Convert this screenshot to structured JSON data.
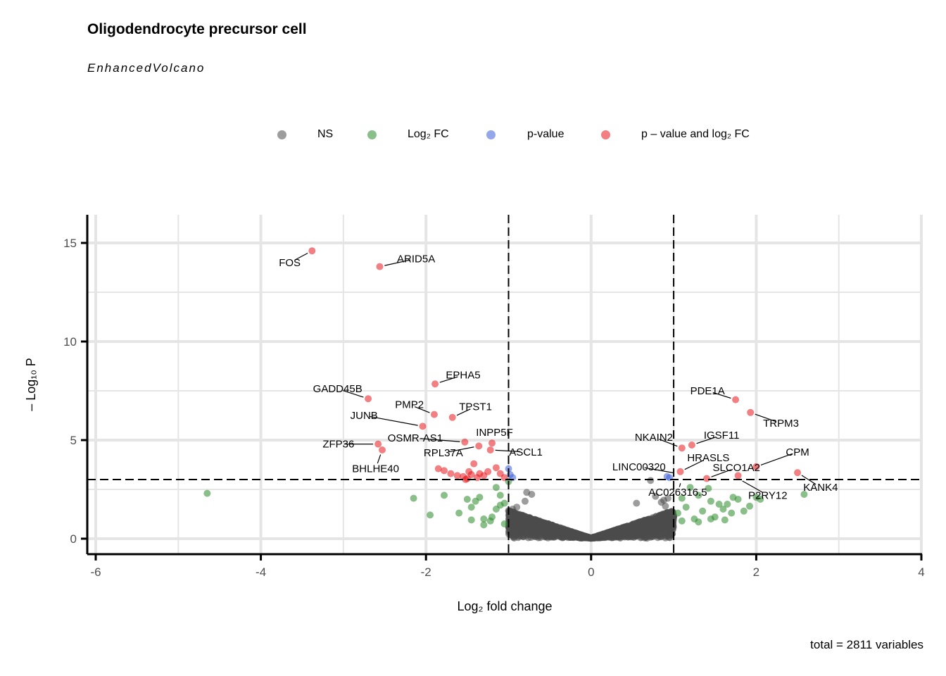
{
  "title": "Oligodendrocyte precursor cell",
  "subtitle": "EnhancedVolcano",
  "caption": "total = 2811 variables",
  "legend": [
    {
      "key": "ns",
      "label": "NS",
      "color": "#4d4d4d"
    },
    {
      "key": "log2fc",
      "label": "Log₂ FC",
      "color": "#2a8a2a"
    },
    {
      "key": "pvalue",
      "label": "p-value",
      "color": "#3b5ed9"
    },
    {
      "key": "both",
      "label": "p – value and log₂ FC",
      "color": "#e8151b"
    }
  ],
  "chart_data": {
    "type": "scatter",
    "title": "Oligodendrocyte precursor cell",
    "subtitle": "EnhancedVolcano",
    "xlabel": "Log₂ fold change",
    "ylabel": "– Log₁₀ P",
    "xlim": [
      -6,
      4
    ],
    "ylim": [
      -0.8,
      16.3
    ],
    "x_ticks": [
      -6,
      -4,
      -2,
      0,
      2,
      4
    ],
    "y_ticks": [
      0,
      5,
      10,
      15
    ],
    "x_tick_labels": [
      "-6",
      "-4",
      "-2",
      "0",
      "2",
      "4"
    ],
    "y_tick_labels": [
      "0",
      "5",
      "10",
      "15"
    ],
    "grid": true,
    "legend_position": "top",
    "cutoffs": {
      "log2fc": [
        -1,
        1
      ],
      "neg_log10_p": 3
    },
    "caption": "total = 2811 variables",
    "total_variables": 2811,
    "labeled_genes": [
      {
        "name": "FOS",
        "x": -3.38,
        "y": 14.6,
        "label_x": -3.65,
        "label_y": 14.0
      },
      {
        "name": "ARID5A",
        "x": -2.56,
        "y": 13.8,
        "label_x": -2.12,
        "label_y": 14.2
      },
      {
        "name": "EPHA5",
        "x": -1.89,
        "y": 7.85,
        "label_x": -1.55,
        "label_y": 8.3
      },
      {
        "name": "GADD45B",
        "x": -2.7,
        "y": 7.1,
        "label_x": -3.07,
        "label_y": 7.6
      },
      {
        "name": "PMP2",
        "x": -1.9,
        "y": 6.3,
        "label_x": -2.2,
        "label_y": 6.8
      },
      {
        "name": "TPST1",
        "x": -1.68,
        "y": 6.15,
        "label_x": -1.4,
        "label_y": 6.7
      },
      {
        "name": "JUNB",
        "x": -2.04,
        "y": 5.7,
        "label_x": -2.75,
        "label_y": 6.25
      },
      {
        "name": "INPP5F",
        "x": -1.2,
        "y": 4.85,
        "label_x": -1.17,
        "label_y": 5.4
      },
      {
        "name": "OSMR-AS1",
        "x": -1.53,
        "y": 4.9,
        "label_x": -2.13,
        "label_y": 5.1
      },
      {
        "name": "ZFP36",
        "x": -2.58,
        "y": 4.8,
        "label_x": -3.06,
        "label_y": 4.8
      },
      {
        "name": "RPL37A",
        "x": -1.36,
        "y": 4.7,
        "label_x": -1.79,
        "label_y": 4.35
      },
      {
        "name": "ASCL1",
        "x": -1.22,
        "y": 4.5,
        "label_x": -0.79,
        "label_y": 4.4
      },
      {
        "name": "BHLHE40",
        "x": -2.53,
        "y": 4.5,
        "label_x": -2.61,
        "label_y": 3.55
      },
      {
        "name": "PDE1A",
        "x": 1.75,
        "y": 7.05,
        "label_x": 1.41,
        "label_y": 7.5
      },
      {
        "name": "TRPM3",
        "x": 1.93,
        "y": 6.4,
        "label_x": 2.3,
        "label_y": 5.85
      },
      {
        "name": "NKAIN2",
        "x": 1.1,
        "y": 4.6,
        "label_x": 0.76,
        "label_y": 5.15
      },
      {
        "name": "IGSF11",
        "x": 1.22,
        "y": 4.75,
        "label_x": 1.58,
        "label_y": 5.25
      },
      {
        "name": "CPM",
        "x": 2.0,
        "y": 3.65,
        "label_x": 2.5,
        "label_y": 4.4
      },
      {
        "name": "HRASLS",
        "x": 1.08,
        "y": 3.4,
        "label_x": 1.42,
        "label_y": 4.1
      },
      {
        "name": "LINC00320",
        "x": 1.05,
        "y": 3.3,
        "label_x": 0.58,
        "label_y": 3.65
      },
      {
        "name": "SLCO1A2",
        "x": 1.4,
        "y": 3.05,
        "label_x": 1.76,
        "label_y": 3.6
      },
      {
        "name": "KANK4",
        "x": 2.5,
        "y": 3.35,
        "label_x": 2.78,
        "label_y": 2.6
      },
      {
        "name": "AC026316.5",
        "x": 1.1,
        "y": 3.05,
        "label_x": 1.05,
        "label_y": 2.35
      },
      {
        "name": "P2RY12",
        "x": 1.78,
        "y": 3.05,
        "label_x": 2.14,
        "label_y": 2.2
      }
    ],
    "series": [
      {
        "name": "NS",
        "category": "ns",
        "color": "#4d4d4d",
        "points": [
          [
            0.72,
            2.95
          ],
          [
            0.78,
            2.15
          ],
          [
            0.85,
            1.85
          ],
          [
            0.88,
            1.95
          ],
          [
            0.9,
            1.65
          ],
          [
            0.93,
            2.05
          ],
          [
            -0.78,
            2.35
          ],
          [
            -0.72,
            2.25
          ],
          [
            -0.8,
            1.9
          ],
          [
            -0.9,
            1.6
          ],
          [
            -0.95,
            1.5
          ],
          [
            0.55,
            1.8
          ]
        ]
      },
      {
        "name": "Log₂ FC",
        "category": "log2fc",
        "color": "#2a8a2a",
        "points": [
          [
            -4.65,
            2.3
          ],
          [
            -2.15,
            2.05
          ],
          [
            -1.95,
            1.2
          ],
          [
            -1.78,
            2.2
          ],
          [
            -1.6,
            1.3
          ],
          [
            -1.5,
            2.0
          ],
          [
            -1.45,
            1.6
          ],
          [
            -1.4,
            1.9
          ],
          [
            -1.35,
            2.1
          ],
          [
            -1.3,
            1.0
          ],
          [
            -1.22,
            0.9
          ],
          [
            -1.15,
            1.5
          ],
          [
            -1.1,
            1.7
          ],
          [
            -1.05,
            1.8
          ],
          [
            -1.1,
            2.2
          ],
          [
            -1.15,
            2.6
          ],
          [
            -1.0,
            2.9
          ],
          [
            -1.45,
            0.95
          ],
          [
            -1.3,
            0.7
          ],
          [
            -1.2,
            1.1
          ],
          [
            -1.05,
            0.75
          ],
          [
            1.1,
            2.05
          ],
          [
            1.15,
            1.6
          ],
          [
            1.2,
            2.6
          ],
          [
            1.25,
            1.0
          ],
          [
            1.3,
            2.2
          ],
          [
            1.35,
            1.4
          ],
          [
            1.42,
            2.55
          ],
          [
            1.45,
            1.9
          ],
          [
            1.5,
            1.1
          ],
          [
            1.55,
            1.75
          ],
          [
            1.6,
            1.5
          ],
          [
            1.65,
            1.75
          ],
          [
            1.7,
            1.3
          ],
          [
            1.72,
            2.1
          ],
          [
            1.78,
            2.0
          ],
          [
            1.85,
            1.4
          ],
          [
            1.92,
            1.65
          ],
          [
            2.0,
            2.1
          ],
          [
            2.05,
            2.0
          ],
          [
            2.58,
            2.25
          ],
          [
            1.05,
            1.3
          ],
          [
            1.1,
            0.9
          ],
          [
            1.3,
            0.85
          ],
          [
            1.45,
            1.0
          ],
          [
            1.62,
            0.95
          ]
        ]
      },
      {
        "name": "p-value",
        "category": "pvalue",
        "color": "#3b5ed9",
        "points": [
          [
            -1.0,
            3.55
          ],
          [
            -0.98,
            3.25
          ],
          [
            -0.95,
            3.1
          ],
          [
            0.92,
            3.15
          ],
          [
            0.95,
            3.1
          ]
        ]
      },
      {
        "name": "p – value and log₂ FC",
        "category": "both",
        "color": "#e8151b",
        "points": [
          [
            -3.38,
            14.6
          ],
          [
            -2.56,
            13.8
          ],
          [
            -1.89,
            7.85
          ],
          [
            -2.7,
            7.1
          ],
          [
            -1.9,
            6.3
          ],
          [
            -1.68,
            6.15
          ],
          [
            -2.04,
            5.7
          ],
          [
            -1.2,
            4.85
          ],
          [
            -1.53,
            4.9
          ],
          [
            -2.58,
            4.8
          ],
          [
            -1.36,
            4.7
          ],
          [
            -1.22,
            4.5
          ],
          [
            -2.53,
            4.5
          ],
          [
            -1.85,
            3.55
          ],
          [
            -1.78,
            3.45
          ],
          [
            -1.7,
            3.3
          ],
          [
            -1.62,
            3.2
          ],
          [
            -1.55,
            3.15
          ],
          [
            -1.5,
            3.05
          ],
          [
            -1.45,
            3.25
          ],
          [
            -1.42,
            3.8
          ],
          [
            -1.35,
            3.3
          ],
          [
            -1.3,
            3.2
          ],
          [
            -1.25,
            3.4
          ],
          [
            -1.15,
            3.6
          ],
          [
            -1.1,
            3.3
          ],
          [
            -1.05,
            3.1
          ],
          [
            -1.52,
            3.0
          ],
          [
            -1.48,
            3.4
          ],
          [
            -1.38,
            3.1
          ],
          [
            1.08,
            3.4
          ],
          [
            1.1,
            4.6
          ],
          [
            1.22,
            4.75
          ],
          [
            1.4,
            3.05
          ],
          [
            1.75,
            7.05
          ],
          [
            1.93,
            6.4
          ],
          [
            1.78,
            3.2
          ],
          [
            2.0,
            3.65
          ],
          [
            2.5,
            3.35
          ]
        ]
      }
    ],
    "ns_cloud": {
      "x_range": [
        -1.0,
        1.0
      ],
      "y_max_at_edge": 1.4,
      "count": 2700
    }
  }
}
